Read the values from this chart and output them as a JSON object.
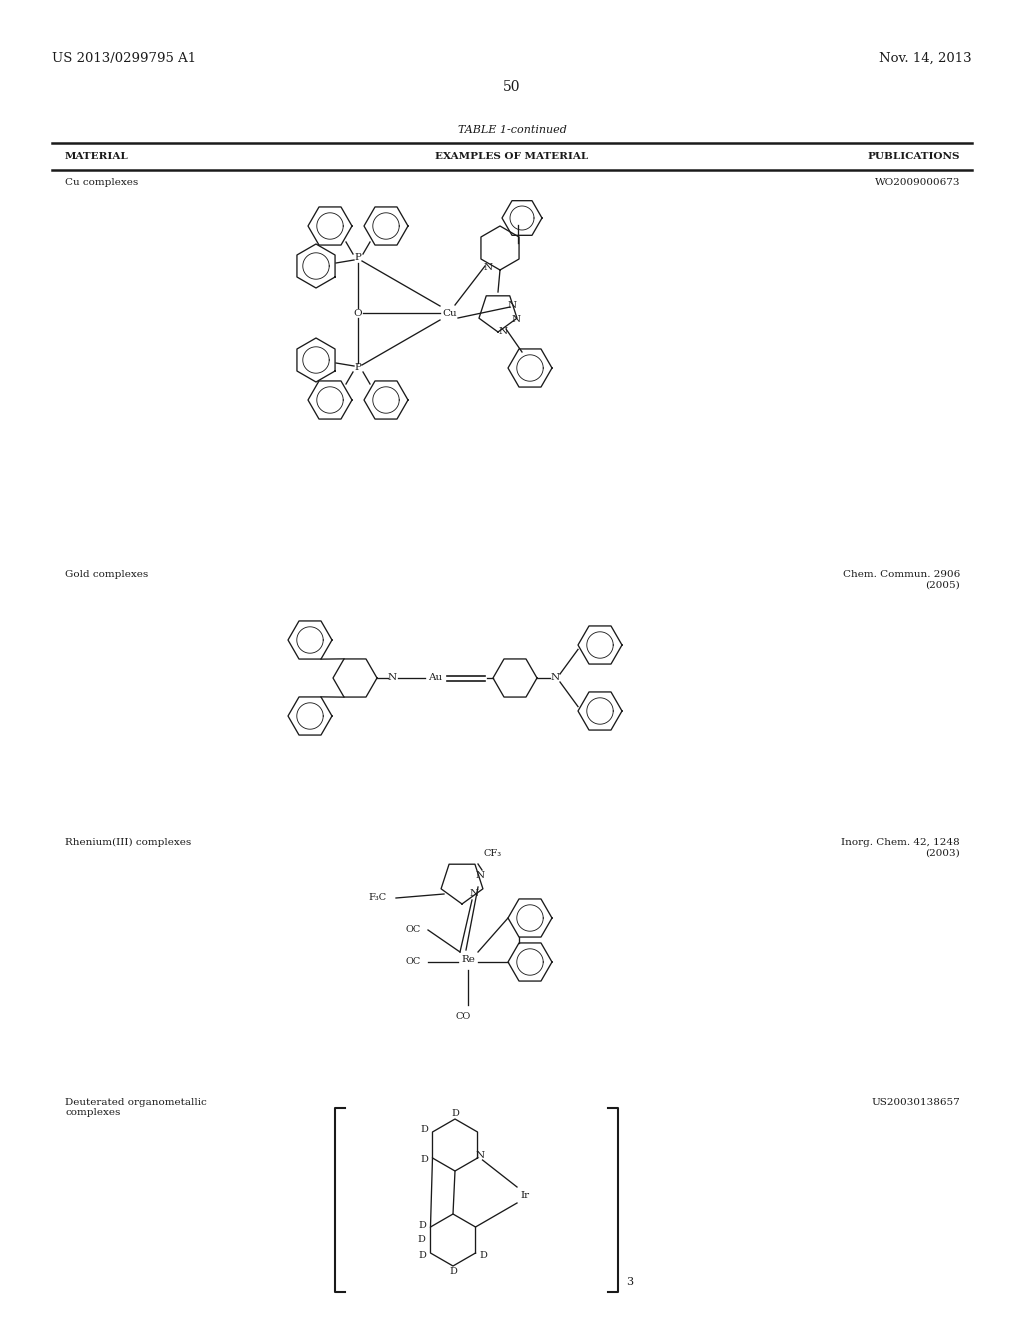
{
  "page_number": "50",
  "patent_number": "US 2013/0299795 A1",
  "patent_date": "Nov. 14, 2013",
  "table_title": "TABLE 1-continued",
  "col1_header": "MATERIAL",
  "col2_header": "EXAMPLES OF MATERIAL",
  "col3_header": "PUBLICATIONS",
  "rows": [
    {
      "material": "Cu complexes",
      "publication": "WO2009000673"
    },
    {
      "material": "Gold complexes",
      "publication": "Chem. Commun. 2906\n(2005)"
    },
    {
      "material": "Rhenium(III) complexes",
      "publication": "Inorg. Chem. 42, 1248\n(2003)"
    },
    {
      "material": "Deuterated organometallic\ncomplexes",
      "publication": "US20030138657"
    }
  ],
  "bg_color": "#ffffff",
  "text_color": "#1a1a1a",
  "line_color": "#1a1a1a"
}
